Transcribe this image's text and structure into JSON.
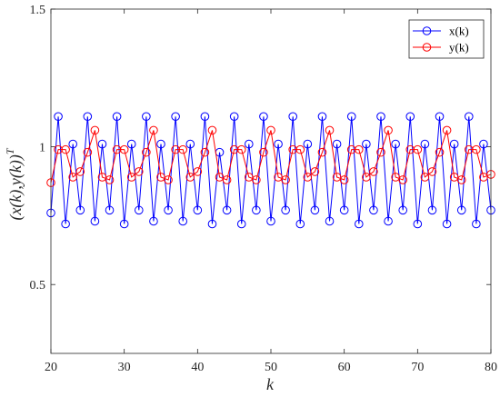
{
  "chart_data": {
    "type": "line",
    "title": "",
    "xlabel": "k",
    "ylabel": "(x(k),y(k))^T",
    "ylabel_parts": {
      "main": "(x(k),y(k))",
      "sup": "T"
    },
    "xlim": [
      20,
      80
    ],
    "ylim": [
      0.25,
      1.5
    ],
    "xticks": [
      20,
      30,
      40,
      50,
      60,
      70,
      80
    ],
    "xtick_labels": [
      "20",
      "30",
      "40",
      "50",
      "60",
      "70",
      "80"
    ],
    "yticks": [
      0.5,
      1,
      1.5
    ],
    "ytick_labels": [
      "0.5",
      "1",
      "1.5"
    ],
    "grid": false,
    "legend_position": "top-right",
    "x": [
      20,
      21,
      22,
      23,
      24,
      25,
      26,
      27,
      28,
      29,
      30,
      31,
      32,
      33,
      34,
      35,
      36,
      37,
      38,
      39,
      40,
      41,
      42,
      43,
      44,
      45,
      46,
      47,
      48,
      49,
      50,
      51,
      52,
      53,
      54,
      55,
      56,
      57,
      58,
      59,
      60,
      61,
      62,
      63,
      64,
      65,
      66,
      67,
      68,
      69,
      70,
      71,
      72,
      73,
      74,
      75,
      76,
      77,
      78,
      79,
      80
    ],
    "series": [
      {
        "name": "x(k)",
        "color": "#0000ff",
        "marker": "circle",
        "values": [
          0.76,
          1.11,
          0.72,
          1.01,
          0.77,
          1.11,
          0.73,
          1.01,
          0.77,
          1.11,
          0.72,
          1.01,
          0.77,
          1.11,
          0.73,
          1.01,
          0.77,
          1.11,
          0.73,
          1.01,
          0.77,
          1.11,
          0.72,
          0.98,
          0.77,
          1.11,
          0.72,
          1.01,
          0.77,
          1.11,
          0.73,
          1.01,
          0.77,
          1.11,
          0.72,
          1.01,
          0.77,
          1.11,
          0.73,
          1.01,
          0.77,
          1.11,
          0.72,
          1.01,
          0.77,
          1.11,
          0.73,
          1.01,
          0.77,
          1.11,
          0.72,
          1.01,
          0.77,
          1.11,
          0.72,
          1.01,
          0.77,
          1.11,
          0.72,
          1.01,
          0.77
        ]
      },
      {
        "name": "y(k)",
        "color": "#ff0000",
        "marker": "circle",
        "values": [
          0.87,
          0.99,
          0.99,
          0.89,
          0.91,
          0.98,
          1.06,
          0.89,
          0.88,
          0.99,
          0.99,
          0.89,
          0.91,
          0.98,
          1.06,
          0.89,
          0.88,
          0.99,
          0.99,
          0.89,
          0.91,
          0.98,
          1.06,
          0.89,
          0.88,
          0.99,
          0.99,
          0.89,
          0.88,
          0.98,
          1.06,
          0.89,
          0.88,
          0.99,
          0.99,
          0.89,
          0.91,
          0.98,
          1.06,
          0.89,
          0.88,
          0.99,
          0.99,
          0.89,
          0.91,
          0.98,
          1.06,
          0.89,
          0.88,
          0.99,
          0.99,
          0.89,
          0.91,
          0.98,
          1.06,
          0.89,
          0.88,
          0.99,
          0.99,
          0.89,
          0.9
        ]
      }
    ]
  }
}
